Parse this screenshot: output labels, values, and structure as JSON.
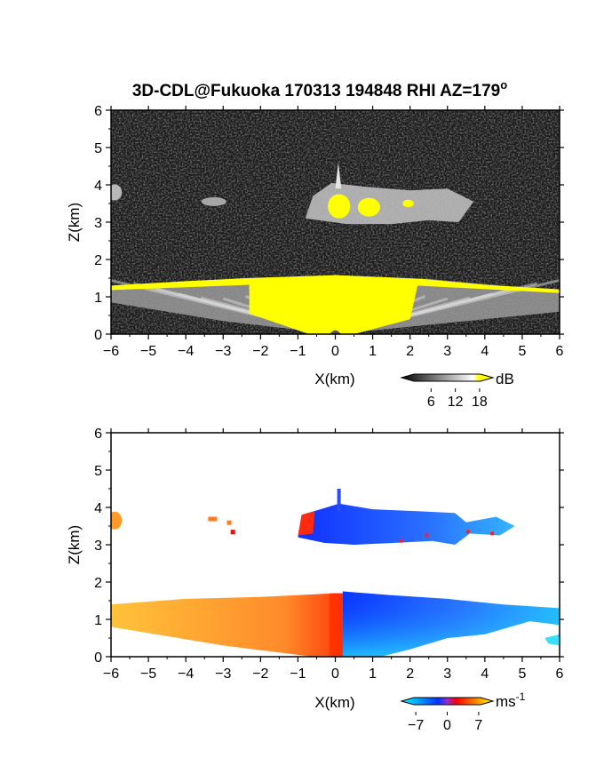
{
  "title": "3D-CDL@Fukuoka 170313 194848 RHI AZ=179",
  "title_superscript": "o",
  "chart_data": [
    {
      "type": "heatmap",
      "panel": "reflectivity",
      "xlabel": "X(km)",
      "ylabel": "Z(km)",
      "xlim": [
        -6,
        6
      ],
      "ylim": [
        0,
        6
      ],
      "xticks": [
        "-6",
        "-5",
        "-4",
        "-3",
        "-2",
        "-1",
        "0",
        "1",
        "2",
        "3",
        "4",
        "5",
        "6"
      ],
      "yticks": [
        "0",
        "1",
        "2",
        "3",
        "4",
        "5",
        "6"
      ],
      "background_color": "#1a1a1a",
      "saturation_color": "#ffff00",
      "colorbar": {
        "unit": "dB",
        "ticks": [
          "6",
          "12",
          "18"
        ],
        "range": [
          0,
          20
        ],
        "colors": [
          "#000000",
          "#ffffff",
          "#ffff00"
        ]
      },
      "features": [
        {
          "name": "boundary layer",
          "x_range": [
            -6,
            6
          ],
          "z_top_edges": 1.3,
          "z_top_center": 1.55,
          "saturated_x_range": [
            -2.3,
            2.3
          ]
        },
        {
          "name": "cloud layer",
          "x_range": [
            -0.8,
            3.7
          ],
          "z_range": [
            2.9,
            4.1
          ],
          "saturated_patches": [
            [
              -0.2,
              0.4
            ],
            [
              0.6,
              1.2
            ],
            [
              1.8,
              2.1
            ]
          ]
        },
        {
          "name": "cloud fragment",
          "x_range": [
            -6,
            -5.8
          ],
          "z_range": [
            3.6,
            4.0
          ]
        },
        {
          "name": "cloud fragment",
          "x_range": [
            -3.5,
            -3.0
          ],
          "z_range": [
            3.4,
            3.8
          ]
        }
      ]
    },
    {
      "type": "heatmap",
      "panel": "radial velocity",
      "xlabel": "X(km)",
      "ylabel": "Z(km)",
      "xlim": [
        -6,
        6
      ],
      "ylim": [
        0,
        6
      ],
      "xticks": [
        "-6",
        "-5",
        "-4",
        "-3",
        "-2",
        "-1",
        "0",
        "1",
        "2",
        "3",
        "4",
        "5",
        "6"
      ],
      "yticks": [
        "0",
        "1",
        "2",
        "3",
        "4",
        "5",
        "6"
      ],
      "colorbar": {
        "unit": "ms",
        "unit_superscript": "-1",
        "ticks": [
          "-7",
          "0",
          "7"
        ],
        "range": [
          -9,
          9
        ],
        "colors": [
          "#00ffff",
          "#0033ff",
          "#ff0000",
          "#ffff00"
        ]
      },
      "features": [
        {
          "name": "boundary layer left",
          "x_range": [
            -6,
            0.2
          ],
          "z_top": [
            1.3,
            1.7
          ],
          "velocity_range": [
            3,
            7
          ]
        },
        {
          "name": "boundary layer right",
          "x_range": [
            0.2,
            6
          ],
          "z_top": [
            1.7,
            1.2
          ],
          "velocity_range": [
            -8,
            -4
          ]
        },
        {
          "name": "cloud layer",
          "x_range": [
            -1.0,
            4.8
          ],
          "z_range": [
            3.0,
            4.0
          ],
          "velocity_range": [
            -6,
            -3
          ]
        },
        {
          "name": "cloud fragment",
          "x_range": [
            -6,
            -5.8
          ],
          "z_range": [
            3.4,
            3.9
          ],
          "velocity": 5
        },
        {
          "name": "cloud fragment",
          "x_range": [
            -3.4,
            -2.6
          ],
          "z_range": [
            3.3,
            3.8
          ],
          "velocity": 3
        }
      ]
    }
  ]
}
